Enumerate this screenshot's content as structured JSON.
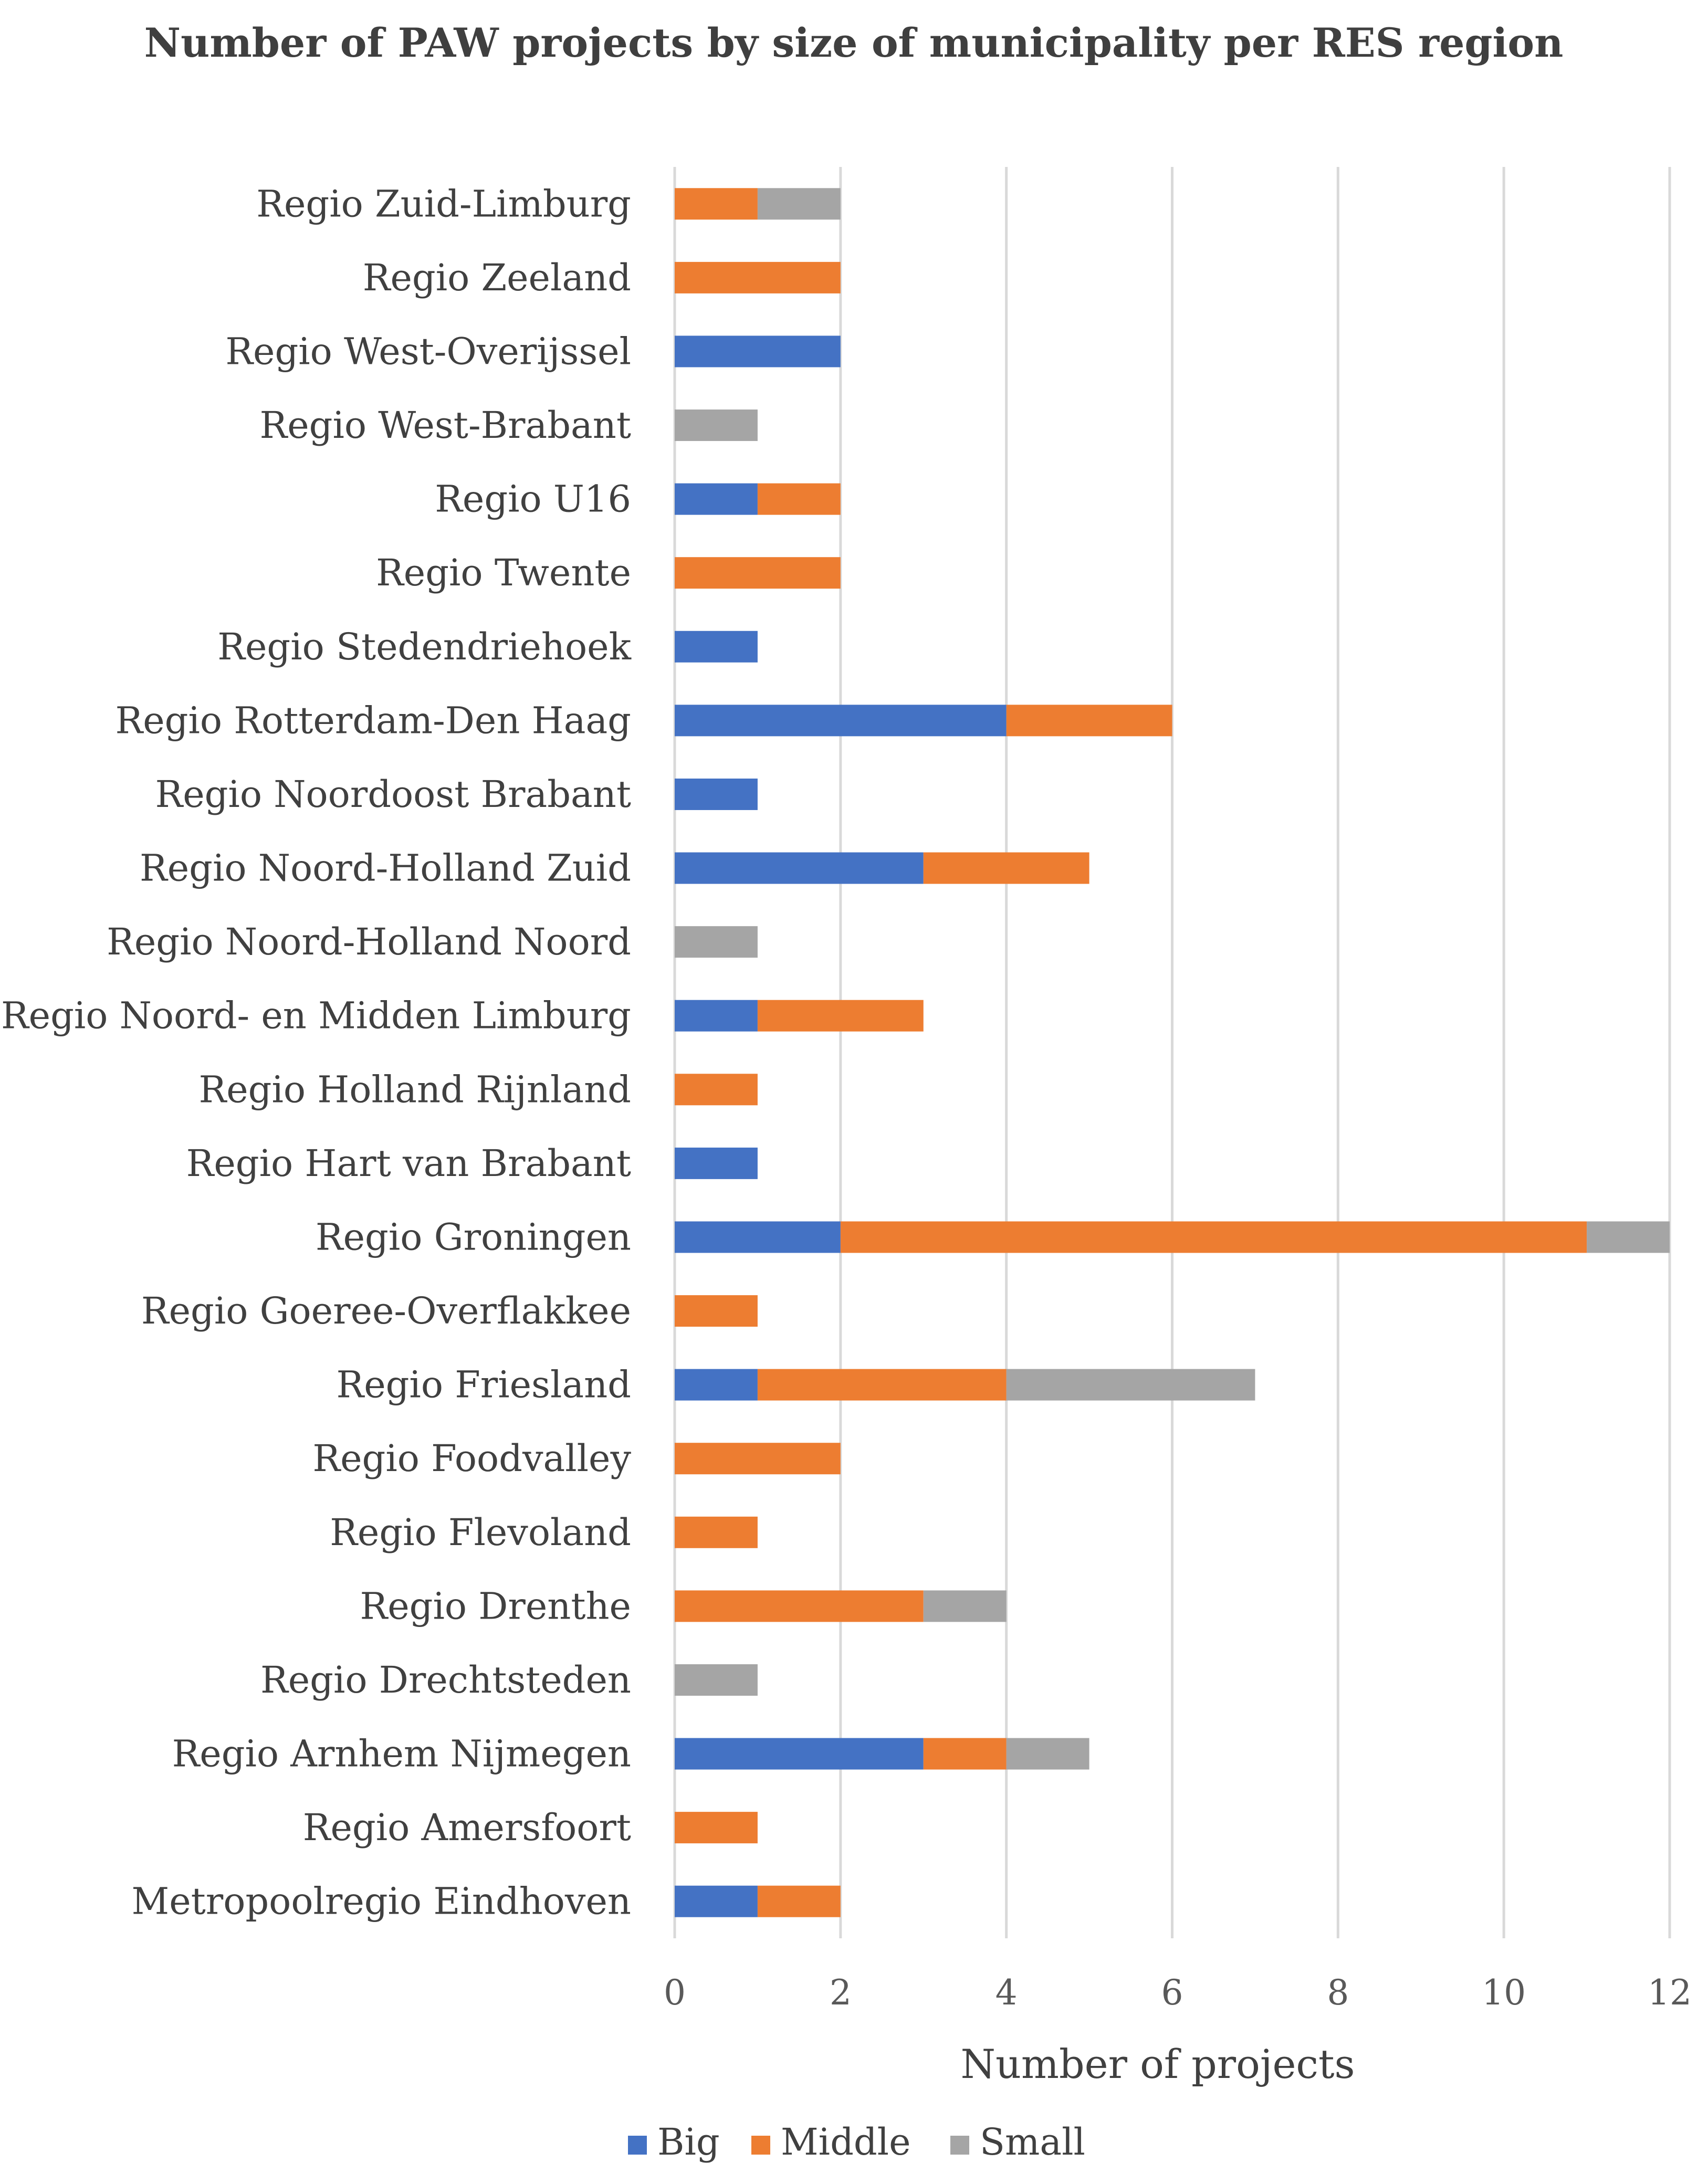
{
  "chart_data": {
    "type": "bar",
    "orientation": "horizontal",
    "stacked": true,
    "title": "Number of PAW projects by size of municipality per RES region",
    "xlabel": "Number of projects",
    "ylabel": "",
    "xlim": [
      0,
      12
    ],
    "xticks": [
      "0",
      "2",
      "4",
      "6",
      "8",
      "10",
      "12"
    ],
    "grid": true,
    "legend_position": "bottom",
    "categories": [
      "Regio Zuid-Limburg",
      "Regio Zeeland",
      "Regio West-Overijssel",
      "Regio West-Brabant",
      "Regio U16",
      "Regio Twente",
      "Regio Stedendriehoek",
      "Regio Rotterdam-Den Haag",
      "Regio Noordoost Brabant",
      "Regio Noord-Holland Zuid",
      "Regio Noord-Holland Noord",
      "Regio Noord- en Midden Limburg",
      "Regio Holland Rijnland",
      "Regio Hart van Brabant",
      "Regio Groningen",
      "Regio Goeree-Overflakkee",
      "Regio Friesland",
      "Regio Foodvalley",
      "Regio Flevoland",
      "Regio Drenthe",
      "Regio Drechtsteden",
      "Regio Arnhem Nijmegen",
      "Regio Amersfoort",
      "Metropoolregio Eindhoven"
    ],
    "series": [
      {
        "name": "Big",
        "color": "#4472c4",
        "values": [
          0,
          0,
          2,
          0,
          1,
          0,
          1,
          4,
          1,
          3,
          0,
          1,
          0,
          1,
          2,
          0,
          1,
          0,
          0,
          0,
          0,
          3,
          0,
          1
        ]
      },
      {
        "name": "Middle",
        "color": "#ed7d31",
        "values": [
          1,
          2,
          0,
          0,
          1,
          2,
          0,
          2,
          0,
          2,
          0,
          2,
          1,
          0,
          9,
          1,
          3,
          2,
          1,
          3,
          0,
          1,
          1,
          1
        ]
      },
      {
        "name": "Small",
        "color": "#a5a5a5",
        "values": [
          1,
          0,
          0,
          1,
          0,
          0,
          0,
          0,
          0,
          0,
          1,
          0,
          0,
          0,
          1,
          0,
          3,
          0,
          0,
          1,
          1,
          1,
          0,
          0
        ]
      }
    ]
  }
}
